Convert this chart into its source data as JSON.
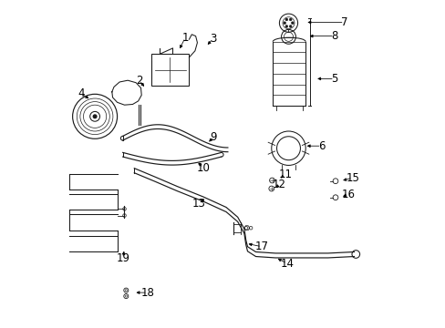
{
  "background_color": "#ffffff",
  "figsize": [
    4.89,
    3.6
  ],
  "dpi": 100,
  "line_color": "#1a1a1a",
  "text_color": "#000000",
  "arrow_color": "#000000",
  "label_fontsize": 8.5,
  "label_positions": {
    "1": [
      0.385,
      0.885,
      0.365,
      0.845
    ],
    "2": [
      0.245,
      0.755,
      0.265,
      0.73
    ],
    "3": [
      0.47,
      0.882,
      0.448,
      0.858
    ],
    "4": [
      0.068,
      0.715,
      0.098,
      0.695
    ],
    "5": [
      0.84,
      0.76,
      0.78,
      0.76
    ],
    "6": [
      0.8,
      0.555,
      0.748,
      0.555
    ],
    "7": [
      0.87,
      0.932,
      0.75,
      0.932
    ],
    "8": [
      0.84,
      0.89,
      0.756,
      0.89
    ],
    "9": [
      0.472,
      0.583,
      0.452,
      0.562
    ],
    "10": [
      0.44,
      0.488,
      0.42,
      0.51
    ],
    "11": [
      0.69,
      0.468,
      0.669,
      0.452
    ],
    "12": [
      0.672,
      0.438,
      0.655,
      0.422
    ],
    "13": [
      0.428,
      0.378,
      0.448,
      0.4
    ],
    "14": [
      0.695,
      0.197,
      0.66,
      0.215
    ],
    "15": [
      0.895,
      0.458,
      0.858,
      0.448
    ],
    "16": [
      0.882,
      0.408,
      0.858,
      0.398
    ],
    "17": [
      0.618,
      0.248,
      0.57,
      0.258
    ],
    "18": [
      0.27,
      0.108,
      0.228,
      0.108
    ],
    "19": [
      0.195,
      0.212,
      0.2,
      0.242
    ]
  }
}
